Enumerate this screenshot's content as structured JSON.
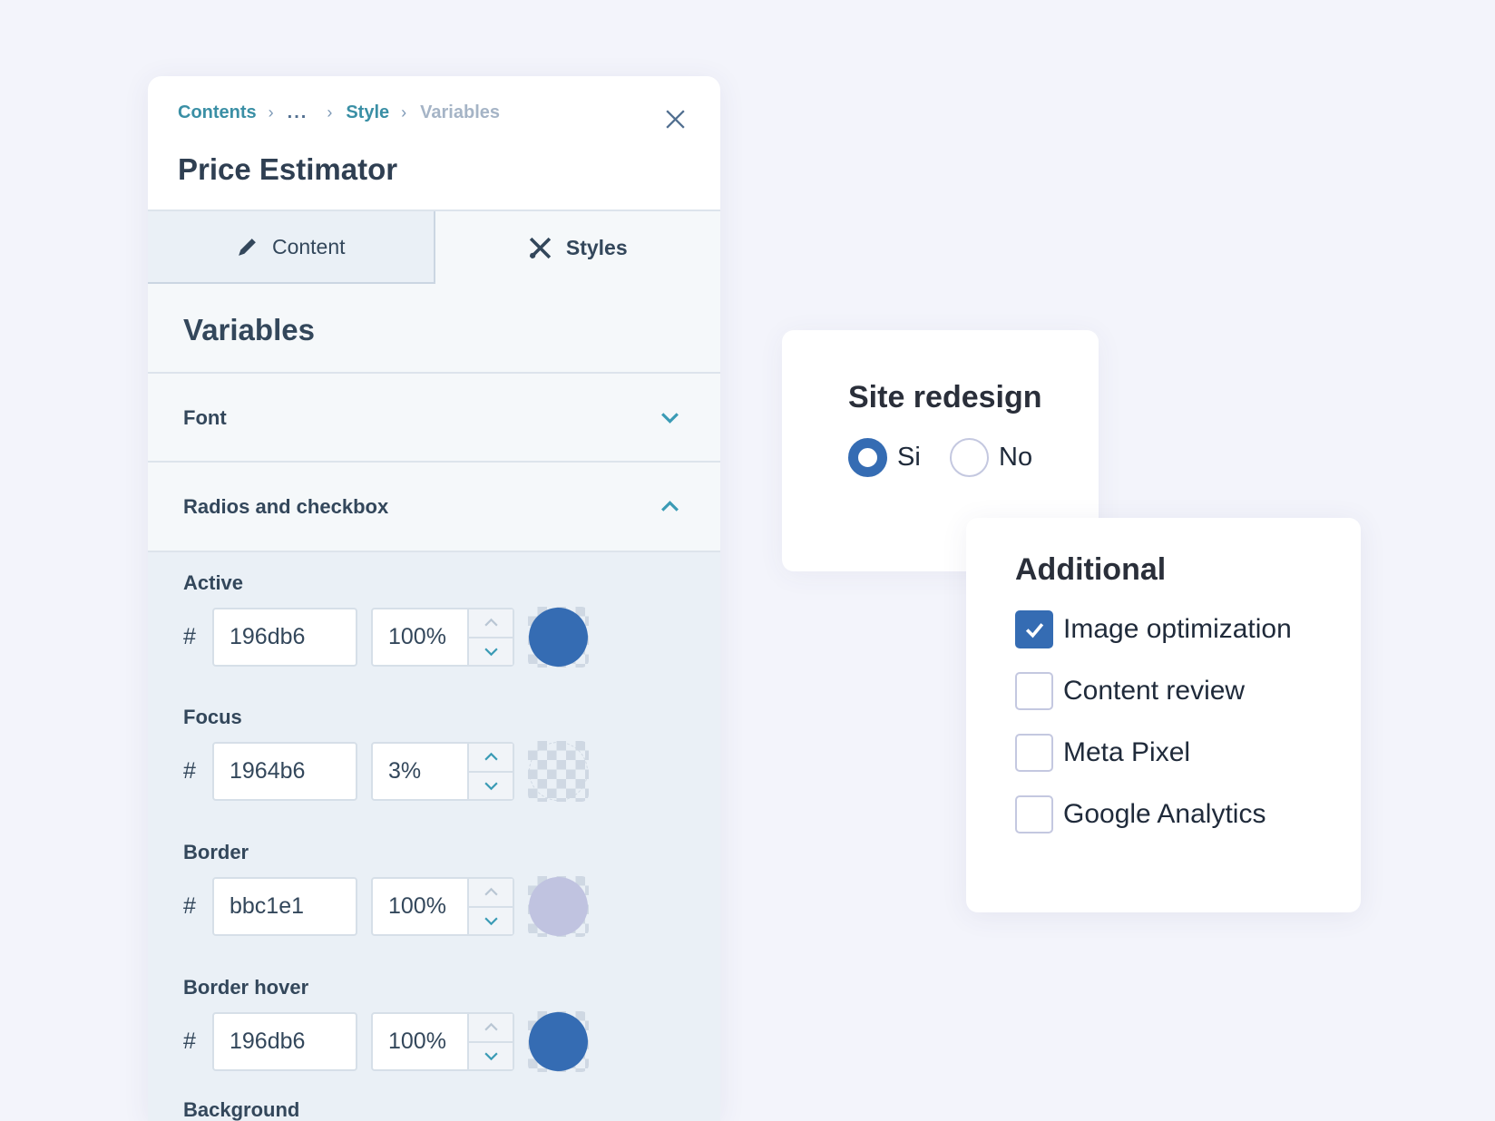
{
  "colors": {
    "accent": "#356cb3",
    "teal": "#3a8fa5",
    "background": "#f3f4fb"
  },
  "panel": {
    "breadcrumbs": [
      {
        "label": "Contents"
      },
      {
        "label": "..."
      },
      {
        "label": "Style"
      },
      {
        "label": "Variables"
      }
    ],
    "title": "Price Estimator",
    "close_icon": "close-icon",
    "tabs": [
      {
        "label": "Content",
        "icon": "pencil-icon",
        "active": false
      },
      {
        "label": "Styles",
        "icon": "brush-tools-icon",
        "active": true
      }
    ],
    "section_title": "Variables",
    "sections": [
      {
        "label": "Font",
        "expanded": false
      },
      {
        "label": "Radios and checkbox",
        "expanded": true
      }
    ],
    "variables": [
      {
        "label": "Active",
        "hash": "#",
        "hex": "196db6",
        "opacity": "100%",
        "swatch": "#356cb3"
      },
      {
        "label": "Focus",
        "hash": "#",
        "hex": "1964b6",
        "opacity": "3%",
        "swatch": "transparent"
      },
      {
        "label": "Border",
        "hash": "#",
        "hex": "bbc1e1",
        "opacity": "100%",
        "swatch": "#c0c3e0"
      },
      {
        "label": "Border hover",
        "hash": "#",
        "hex": "196db6",
        "opacity": "100%",
        "swatch": "#356cb3"
      },
      {
        "label": "Background"
      }
    ]
  },
  "radio_card": {
    "title": "Site redesign",
    "options": [
      {
        "label": "Si",
        "checked": true
      },
      {
        "label": "No",
        "checked": false
      }
    ]
  },
  "checkbox_card": {
    "title": "Additional",
    "options": [
      {
        "label": "Image optimization",
        "checked": true
      },
      {
        "label": "Content review",
        "checked": false
      },
      {
        "label": "Meta Pixel",
        "checked": false
      },
      {
        "label": "Google Analytics",
        "checked": false
      }
    ]
  }
}
